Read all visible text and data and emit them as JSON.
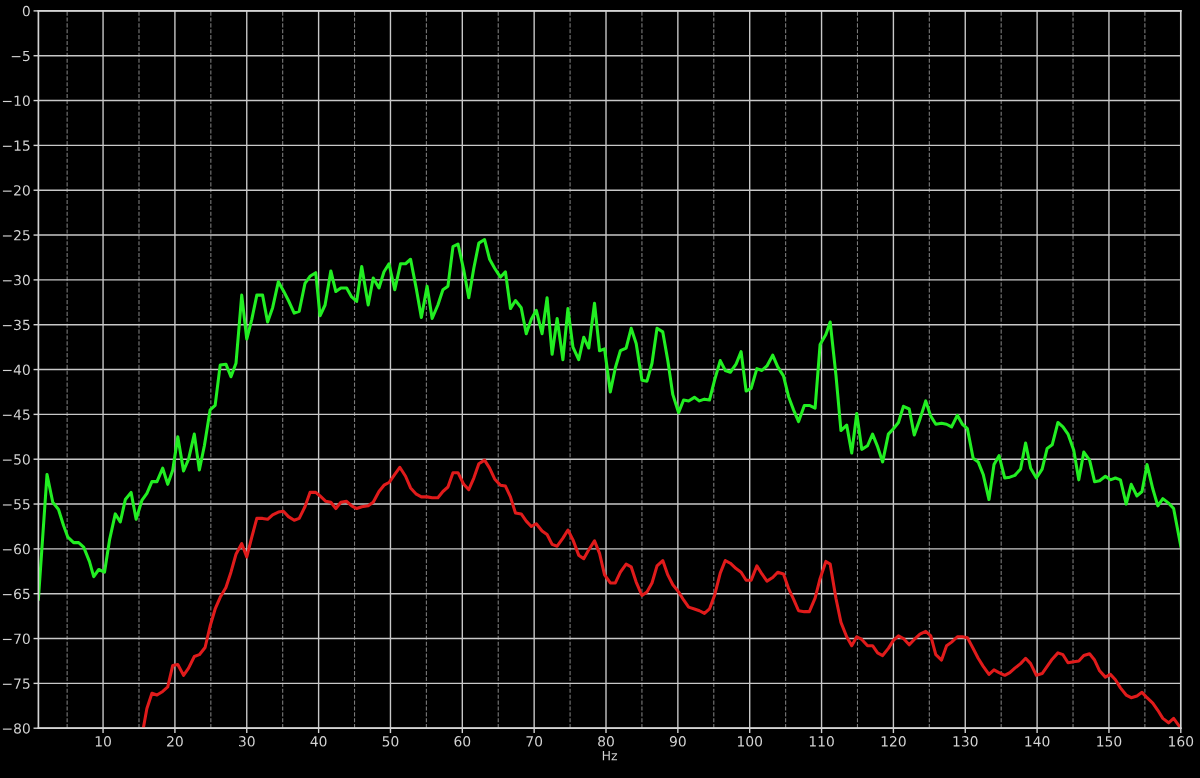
{
  "chart_data": {
    "type": "line",
    "xlabel": "Hz",
    "xlim": [
      1,
      160
    ],
    "ylim": [
      -80,
      0
    ],
    "xticks": [
      {
        "value": 5,
        "label": null
      },
      10,
      {
        "value": 15,
        "label": null
      },
      20,
      {
        "value": 25,
        "label": null
      },
      30,
      {
        "value": 35,
        "label": null
      },
      40,
      {
        "value": 45,
        "label": null
      },
      50,
      {
        "value": 55,
        "label": null
      },
      60,
      {
        "value": 65,
        "label": null
      },
      70,
      {
        "value": 75,
        "label": null
      },
      80,
      {
        "value": 85,
        "label": null
      },
      90,
      {
        "value": 95,
        "label": null
      },
      100,
      {
        "value": 105,
        "label": null
      },
      110,
      {
        "value": 115,
        "label": null
      },
      120,
      {
        "value": 125,
        "label": null
      },
      130,
      {
        "value": 135,
        "label": null
      },
      140,
      {
        "value": 145,
        "label": null
      },
      150,
      {
        "value": 155,
        "label": null
      },
      160
    ],
    "yticks": [
      0,
      {
        "value": -5,
        "label": "−5"
      },
      {
        "value": -10,
        "label": "−10"
      },
      {
        "value": -15,
        "label": "−15"
      },
      {
        "value": -20,
        "label": "−20"
      },
      {
        "value": -25,
        "label": "−25"
      },
      {
        "value": -30,
        "label": "−30"
      },
      {
        "value": -35,
        "label": "−35"
      },
      {
        "value": -40,
        "label": "−40"
      },
      {
        "value": -45,
        "label": "−45"
      },
      {
        "value": -50,
        "label": "−50"
      },
      {
        "value": -55,
        "label": "−55"
      },
      {
        "value": -60,
        "label": "−60"
      },
      {
        "value": -65,
        "label": "−65"
      },
      {
        "value": -70,
        "label": "−70"
      },
      {
        "value": -75,
        "label": "−75"
      },
      {
        "value": -80,
        "label": "−80"
      }
    ],
    "grid": true,
    "line_style": "solid",
    "series": [
      {
        "color": "#22ee22",
        "x": [
          1.0,
          2.2,
          3.0,
          3.8,
          4.5,
          5.1,
          5.9,
          6.6,
          7.3,
          8.1,
          8.7,
          9.4,
          10.2,
          10.9,
          11.7,
          12.4,
          13.1,
          13.9,
          14.6,
          15.4,
          16.1,
          16.8,
          17.5,
          18.3,
          19.0,
          19.7,
          20.4,
          21.2,
          21.9,
          22.7,
          23.4,
          24.1,
          24.9,
          25.6,
          26.3,
          27.1,
          27.8,
          28.5,
          29.3,
          30.0,
          30.7,
          31.4,
          32.2,
          32.9,
          33.6,
          34.4,
          35.1,
          35.8,
          36.6,
          37.3,
          38.1,
          38.8,
          39.6,
          40.2,
          40.9,
          41.7,
          42.4,
          43.1,
          43.9,
          44.6,
          45.3,
          46.0,
          46.9,
          47.6,
          48.4,
          49.1,
          49.8,
          50.6,
          51.4,
          52.1,
          52.8,
          53.6,
          54.3,
          55.1,
          55.8,
          56.6,
          57.3,
          58.0,
          58.7,
          59.4,
          60.2,
          60.9,
          61.6,
          62.3,
          63.1,
          63.8,
          64.5,
          65.3,
          66.0,
          66.7,
          67.4,
          68.2,
          68.9,
          69.6,
          70.3,
          71.1,
          71.8,
          72.5,
          73.2,
          74.0,
          74.7,
          75.4,
          76.2,
          76.9,
          77.6,
          78.4,
          79.1,
          79.8,
          80.6,
          81.3,
          82.0,
          82.8,
          83.5,
          84.2,
          85.0,
          85.7,
          86.4,
          87.1,
          87.9,
          88.6,
          89.3,
          90.1,
          90.8,
          91.5,
          92.3,
          93.0,
          93.7,
          94.4,
          95.1,
          95.9,
          96.6,
          97.3,
          98.1,
          98.8,
          99.5,
          100.2,
          101.0,
          101.7,
          102.4,
          103.2,
          103.9,
          104.7,
          105.4,
          106.1,
          106.8,
          107.6,
          108.3,
          109.1,
          109.8,
          110.6,
          111.2,
          112.0,
          112.7,
          113.5,
          114.2,
          114.9,
          115.6,
          116.4,
          117.1,
          117.8,
          118.5,
          119.3,
          120.0,
          120.7,
          121.4,
          122.2,
          122.9,
          123.7,
          124.5,
          125.2,
          125.9,
          126.7,
          127.4,
          128.1,
          128.9,
          129.6,
          130.3,
          131.1,
          131.8,
          132.5,
          133.3,
          134.0,
          134.7,
          135.5,
          136.2,
          136.9,
          137.7,
          138.4,
          139.1,
          139.9,
          140.7,
          141.4,
          142.1,
          142.9,
          143.6,
          144.3,
          145.1,
          145.8,
          146.5,
          147.3,
          148.0,
          148.7,
          149.5,
          150.2,
          150.9,
          151.6,
          152.4,
          153.1,
          153.9,
          154.6,
          155.3,
          156.1,
          156.8,
          157.5,
          158.3,
          159.0,
          160.0
        ],
        "values": [
          -65.6,
          -51.7,
          -54.8,
          -55.6,
          -57.4,
          -58.7,
          -59.3,
          -59.3,
          -59.8,
          -61.4,
          -63.1,
          -62.3,
          -62.6,
          -59.0,
          -56.1,
          -57.0,
          -54.5,
          -53.7,
          -56.7,
          -54.6,
          -53.8,
          -52.5,
          -52.5,
          -51.0,
          -52.8,
          -51.2,
          -47.5,
          -51.3,
          -50.0,
          -47.2,
          -51.2,
          -48.5,
          -44.5,
          -44.0,
          -39.5,
          -39.4,
          -40.8,
          -39.3,
          -31.7,
          -36.6,
          -34.4,
          -31.7,
          -31.7,
          -34.7,
          -33.1,
          -30.2,
          -31.2,
          -32.3,
          -33.7,
          -33.5,
          -30.4,
          -29.6,
          -29.2,
          -34.0,
          -32.8,
          -29.0,
          -31.3,
          -30.9,
          -30.9,
          -31.9,
          -32.4,
          -28.5,
          -32.8,
          -29.8,
          -30.9,
          -29.1,
          -28.2,
          -31.1,
          -28.2,
          -28.2,
          -27.7,
          -31.0,
          -34.2,
          -30.7,
          -34.3,
          -32.8,
          -31.1,
          -30.7,
          -26.3,
          -26.0,
          -28.9,
          -32.0,
          -28.7,
          -25.9,
          -25.5,
          -27.7,
          -28.7,
          -29.7,
          -29.1,
          -33.2,
          -32.3,
          -33.1,
          -36.0,
          -34.4,
          -33.4,
          -36.0,
          -32.0,
          -38.3,
          -34.3,
          -38.9,
          -33.2,
          -37.5,
          -38.9,
          -36.4,
          -37.6,
          -32.6,
          -37.9,
          -37.7,
          -42.5,
          -39.8,
          -37.9,
          -37.6,
          -35.4,
          -37.1,
          -41.2,
          -41.3,
          -39.3,
          -35.4,
          -35.8,
          -39.0,
          -42.8,
          -44.8,
          -43.4,
          -43.5,
          -43.1,
          -43.5,
          -43.3,
          -43.4,
          -41.2,
          -39.0,
          -40.1,
          -40.3,
          -39.4,
          -38.0,
          -42.4,
          -42.1,
          -39.9,
          -40.1,
          -39.6,
          -38.4,
          -39.7,
          -40.7,
          -43.0,
          -44.5,
          -45.8,
          -44.0,
          -44.0,
          -44.3,
          -37.2,
          -36.1,
          -34.7,
          -40.6,
          -46.8,
          -46.2,
          -49.3,
          -44.9,
          -48.9,
          -48.5,
          -47.2,
          -48.6,
          -50.3,
          -47.2,
          -46.6,
          -45.9,
          -44.1,
          -44.4,
          -47.3,
          -45.5,
          -43.5,
          -45.2,
          -46.1,
          -46.0,
          -46.1,
          -46.4,
          -45.1,
          -46.1,
          -46.6,
          -49.9,
          -50.3,
          -51.7,
          -54.5,
          -50.6,
          -49.6,
          -52.1,
          -52.0,
          -51.8,
          -51.1,
          -48.2,
          -51.0,
          -52.1,
          -51.1,
          -48.8,
          -48.4,
          -45.9,
          -46.4,
          -47.2,
          -49.0,
          -52.3,
          -49.2,
          -50.1,
          -52.5,
          -52.4,
          -51.9,
          -52.3,
          -52.1,
          -52.3,
          -55.0,
          -52.8,
          -54.1,
          -53.6,
          -50.6,
          -53.3,
          -55.2,
          -54.4,
          -54.9,
          -55.5,
          -59.7
        ]
      },
      {
        "color": "#e01b1b",
        "x": [
          15.6,
          16.1,
          16.8,
          17.5,
          18.3,
          19.0,
          19.7,
          20.4,
          21.2,
          21.9,
          22.7,
          23.4,
          24.2,
          24.9,
          25.6,
          26.3,
          27.1,
          27.8,
          28.5,
          29.3,
          30.0,
          30.7,
          31.4,
          32.2,
          32.9,
          33.6,
          34.4,
          35.1,
          35.8,
          36.6,
          37.3,
          38.1,
          38.8,
          39.6,
          40.2,
          41.0,
          41.7,
          42.4,
          43.1,
          43.9,
          44.6,
          45.3,
          46.0,
          46.9,
          47.6,
          48.4,
          49.1,
          49.8,
          50.6,
          51.3,
          52.1,
          52.8,
          53.6,
          54.3,
          55.1,
          55.8,
          56.6,
          57.3,
          58.0,
          58.7,
          59.4,
          60.2,
          60.9,
          61.6,
          62.3,
          63.1,
          63.8,
          64.5,
          65.3,
          66.0,
          66.7,
          67.4,
          68.2,
          68.9,
          69.6,
          70.3,
          71.1,
          71.8,
          72.5,
          73.2,
          74.0,
          74.7,
          75.4,
          76.2,
          76.9,
          77.6,
          78.4,
          79.1,
          79.8,
          80.6,
          81.3,
          82.0,
          82.8,
          83.5,
          84.2,
          85.0,
          85.7,
          86.4,
          87.1,
          87.9,
          88.6,
          89.3,
          90.1,
          90.8,
          91.5,
          92.3,
          93.0,
          93.7,
          94.4,
          95.1,
          95.9,
          96.6,
          97.3,
          98.1,
          98.8,
          99.5,
          100.2,
          101.0,
          101.7,
          102.4,
          103.2,
          103.9,
          104.7,
          105.4,
          106.1,
          106.8,
          107.6,
          108.3,
          109.1,
          109.8,
          110.6,
          111.2,
          112.0,
          112.7,
          113.5,
          114.2,
          114.9,
          115.6,
          116.4,
          117.1,
          117.8,
          118.5,
          119.3,
          120.0,
          120.7,
          121.4,
          122.2,
          122.9,
          123.7,
          124.5,
          125.2,
          125.9,
          126.7,
          127.4,
          128.1,
          128.9,
          129.6,
          130.3,
          131.1,
          131.8,
          132.5,
          133.3,
          134.0,
          134.7,
          135.5,
          136.2,
          136.9,
          137.7,
          138.4,
          139.1,
          139.9,
          140.7,
          141.4,
          142.1,
          142.9,
          143.6,
          144.3,
          145.1,
          145.8,
          146.5,
          147.3,
          148.0,
          148.7,
          149.5,
          150.2,
          150.9,
          151.6,
          152.4,
          153.1,
          153.9,
          154.6,
          155.3,
          156.1,
          156.8,
          157.5,
          158.3,
          159.0,
          160.0
        ],
        "values": [
          -80.0,
          -77.8,
          -76.1,
          -76.3,
          -75.9,
          -75.4,
          -73.0,
          -72.9,
          -74.1,
          -73.3,
          -72.0,
          -71.8,
          -71.0,
          -68.6,
          -66.7,
          -65.4,
          -64.3,
          -62.6,
          -60.6,
          -59.4,
          -60.9,
          -58.7,
          -56.6,
          -56.6,
          -56.7,
          -56.2,
          -55.9,
          -55.8,
          -56.4,
          -56.8,
          -56.6,
          -55.3,
          -53.7,
          -53.7,
          -54.1,
          -54.7,
          -54.8,
          -55.5,
          -54.8,
          -54.7,
          -55.2,
          -55.5,
          -55.3,
          -55.2,
          -54.8,
          -53.6,
          -52.9,
          -52.6,
          -51.7,
          -50.9,
          -51.9,
          -53.2,
          -53.9,
          -54.2,
          -54.2,
          -54.3,
          -54.3,
          -53.6,
          -53.1,
          -51.5,
          -51.5,
          -52.8,
          -53.4,
          -52.1,
          -50.5,
          -50.1,
          -51.0,
          -52.2,
          -52.9,
          -53.0,
          -54.2,
          -56.0,
          -56.1,
          -56.9,
          -57.5,
          -57.2,
          -58.0,
          -58.4,
          -59.5,
          -59.7,
          -58.8,
          -57.9,
          -59.0,
          -60.7,
          -61.1,
          -60.1,
          -59.1,
          -60.5,
          -62.9,
          -63.8,
          -63.8,
          -62.6,
          -61.7,
          -62.0,
          -63.7,
          -65.2,
          -64.8,
          -63.8,
          -61.9,
          -61.3,
          -62.9,
          -64.0,
          -64.8,
          -65.7,
          -66.5,
          -66.7,
          -66.9,
          -67.2,
          -66.7,
          -65.2,
          -62.7,
          -61.3,
          -61.6,
          -62.2,
          -62.6,
          -63.5,
          -63.5,
          -61.9,
          -62.8,
          -63.6,
          -63.2,
          -62.6,
          -62.8,
          -64.4,
          -65.6,
          -66.9,
          -67.0,
          -67.0,
          -65.5,
          -63.3,
          -61.4,
          -61.7,
          -65.5,
          -68.2,
          -69.8,
          -70.8,
          -69.8,
          -70.1,
          -70.8,
          -70.8,
          -71.6,
          -71.9,
          -71.1,
          -70.2,
          -69.7,
          -70.0,
          -70.7,
          -70.1,
          -69.5,
          -69.2,
          -69.7,
          -71.8,
          -72.4,
          -70.8,
          -70.4,
          -69.8,
          -69.8,
          -69.9,
          -71.1,
          -72.2,
          -73.1,
          -74.0,
          -73.5,
          -73.8,
          -74.1,
          -73.8,
          -73.3,
          -72.8,
          -72.2,
          -72.8,
          -74.1,
          -73.9,
          -73.1,
          -72.3,
          -71.6,
          -71.8,
          -72.7,
          -72.6,
          -72.5,
          -71.9,
          -71.7,
          -72.4,
          -73.6,
          -74.3,
          -74.0,
          -74.6,
          -75.5,
          -76.3,
          -76.6,
          -76.4,
          -76.0,
          -76.6,
          -77.2,
          -78.0,
          -78.9,
          -79.4,
          -78.9,
          -80.0
        ]
      }
    ]
  }
}
